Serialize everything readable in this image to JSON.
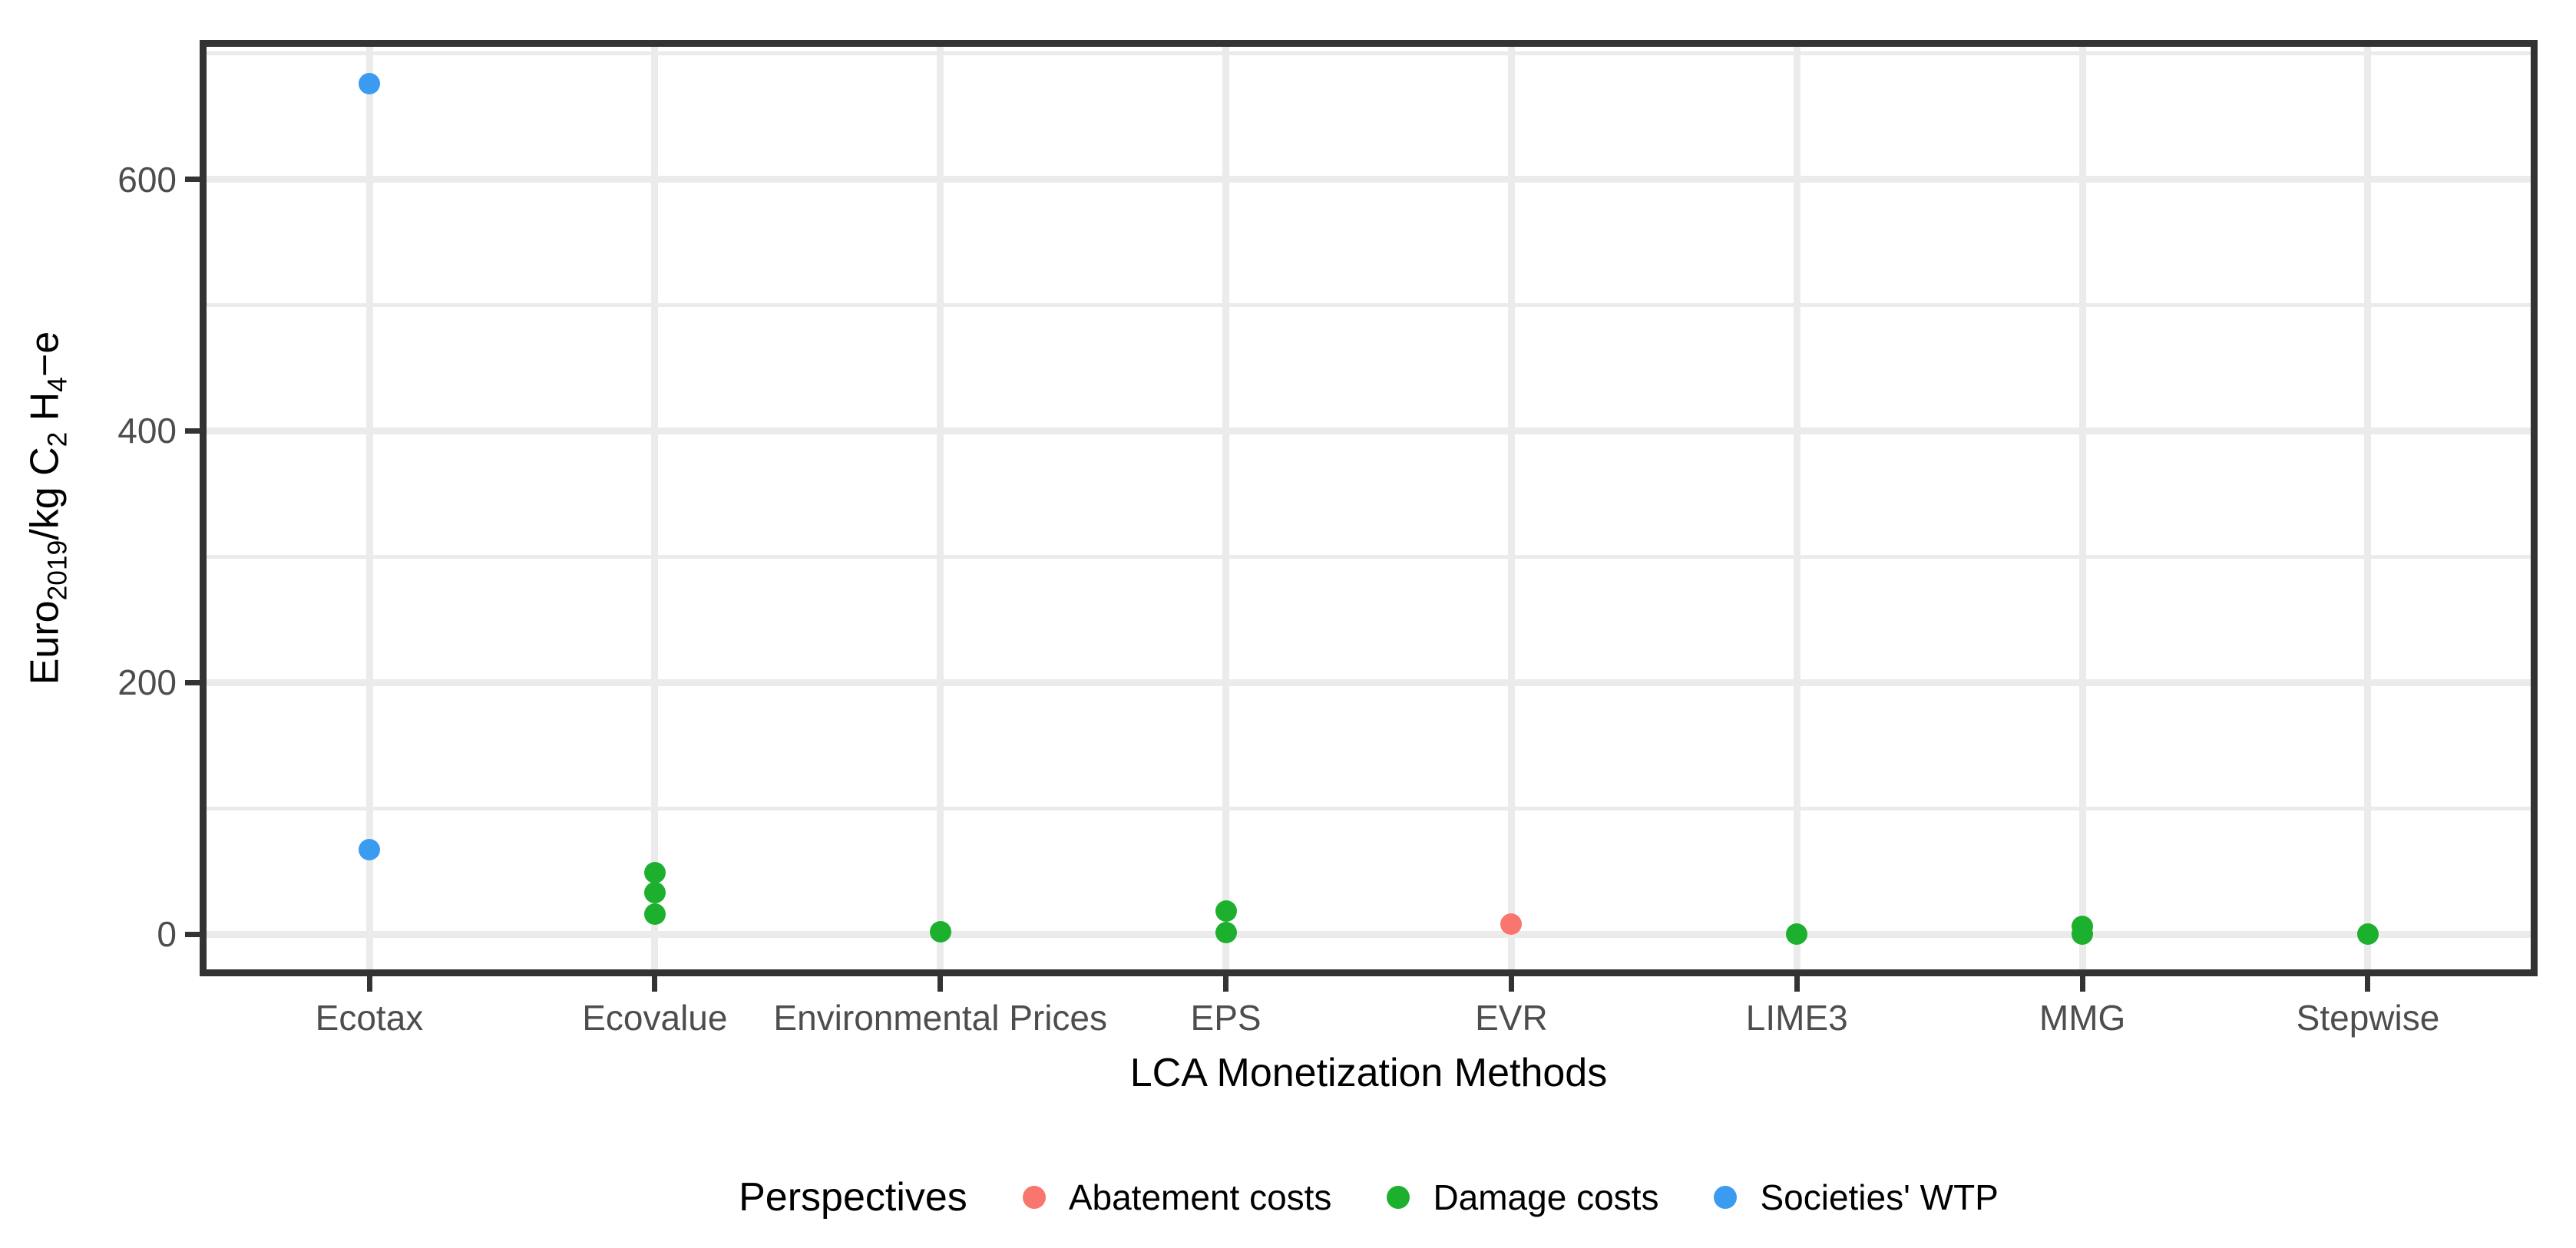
{
  "figure": {
    "background": "#FFFFFF"
  },
  "chart_data": {
    "type": "scatter",
    "title": "",
    "xlabel": "LCA Monetization Methods",
    "ylabel": "Euro2019/kg C2 H4-e",
    "categories": [
      "Ecotax",
      "Ecovalue",
      "Environmental Prices",
      "EPS",
      "EVR",
      "LIME3",
      "MMG",
      "Stepwise"
    ],
    "y_axis": {
      "ticks": [
        0,
        200,
        400,
        600
      ],
      "minor_ticks": [
        100,
        300,
        500,
        700
      ],
      "range": [
        -34,
        710
      ],
      "grid": true
    },
    "legend_position": "bottom",
    "series": [
      {
        "name": "Abatement costs",
        "color": "#F8766D",
        "points": [
          {
            "method": "EVR",
            "value": 8
          }
        ]
      },
      {
        "name": "Damage costs",
        "color": "#1CB02E",
        "points": [
          {
            "method": "Ecovalue",
            "value": 49
          },
          {
            "method": "Ecovalue",
            "value": 33
          },
          {
            "method": "Ecovalue",
            "value": 16
          },
          {
            "method": "Environmental Prices",
            "value": 2
          },
          {
            "method": "EPS",
            "value": 18
          },
          {
            "method": "EPS",
            "value": 1
          },
          {
            "method": "LIME3",
            "value": 0
          },
          {
            "method": "MMG",
            "value": 6
          },
          {
            "method": "MMG",
            "value": 0
          },
          {
            "method": "Stepwise",
            "value": 0
          }
        ]
      },
      {
        "name": "Societies' WTP",
        "color": "#3B9BF1",
        "points": [
          {
            "method": "Ecotax",
            "value": 676
          },
          {
            "method": "Ecotax",
            "value": 67
          }
        ]
      }
    ]
  },
  "axes": {
    "x": {
      "title": "LCA Monetization Methods"
    },
    "y": {
      "tick_labels": [
        "0",
        "200",
        "400",
        "600"
      ],
      "title_parts": [
        {
          "text": "Euro"
        },
        {
          "text": "2019",
          "sub": true
        },
        {
          "text": "/kg C"
        },
        {
          "text": "2",
          "sub": true
        },
        {
          "text": " H"
        },
        {
          "text": "4",
          "sub": true
        },
        {
          "text": "−e"
        }
      ]
    }
  },
  "legend": {
    "title": "Perspectives",
    "items": [
      {
        "label": "Abatement costs",
        "color": "#F8766D"
      },
      {
        "label": "Damage costs",
        "color": "#1CB02E"
      },
      {
        "label": "Societies' WTP",
        "color": "#3B9BF1"
      }
    ]
  },
  "colors": {
    "grid": "#EBEBEB",
    "panel_border": "#333333",
    "tick": "#333333",
    "tick_label": "#4D4D4D",
    "text": "#000000"
  }
}
